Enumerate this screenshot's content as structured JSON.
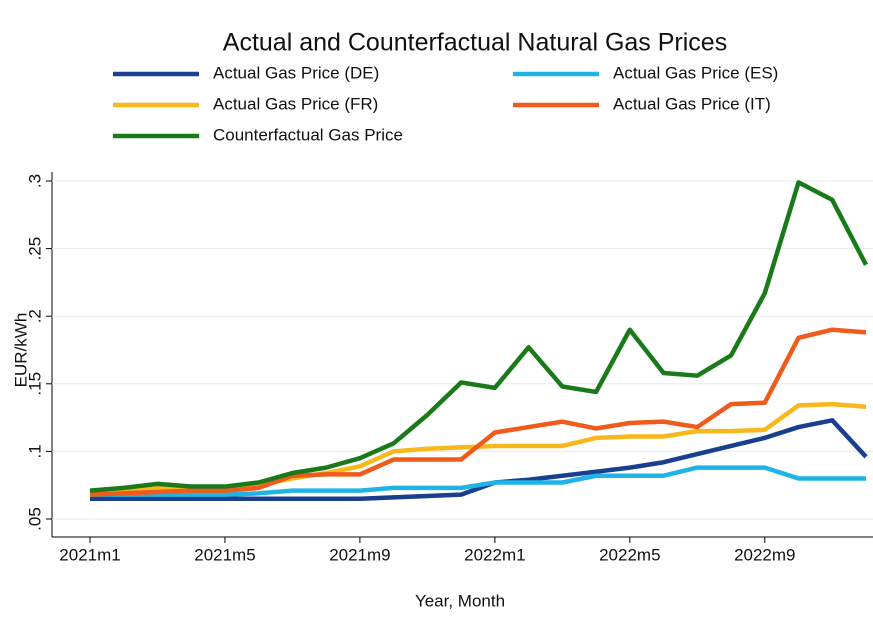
{
  "chart_data": {
    "type": "line",
    "title": "Actual and Counterfactual Natural Gas Prices",
    "x_label": "Year, Month",
    "y_label": "EUR/kWh",
    "categories": [
      "2021m1",
      null,
      null,
      null,
      "2021m5",
      null,
      null,
      null,
      "2021m9",
      null,
      null,
      null,
      "2022m1",
      null,
      null,
      null,
      "2022m5",
      null,
      null,
      null,
      "2022m9",
      null,
      null,
      null
    ],
    "ylim": [
      0.05,
      0.3
    ],
    "yticks": [
      {
        "value": 0.05,
        "label": ".05"
      },
      {
        "value": 0.1,
        "label": ".1"
      },
      {
        "value": 0.15,
        "label": ".15"
      },
      {
        "value": 0.2,
        "label": ".2"
      },
      {
        "value": 0.25,
        "label": ".25"
      },
      {
        "value": 0.3,
        "label": ".3"
      }
    ],
    "grid": true,
    "series": [
      {
        "name": "Actual Gas Price (DE)",
        "color": "#1a3f8f",
        "values": [
          0.065,
          0.065,
          0.065,
          0.065,
          0.065,
          0.065,
          0.065,
          0.065,
          0.065,
          0.066,
          0.067,
          0.068,
          0.077,
          0.079,
          0.082,
          0.085,
          0.088,
          0.092,
          0.098,
          0.104,
          0.11,
          0.118,
          0.123,
          0.096
        ]
      },
      {
        "name": "Actual Gas Price (ES)",
        "color": "#1fb4e8",
        "values": [
          0.068,
          0.068,
          0.068,
          0.068,
          0.068,
          0.069,
          0.071,
          0.071,
          0.071,
          0.073,
          0.073,
          0.073,
          0.077,
          0.077,
          0.077,
          0.082,
          0.082,
          0.082,
          0.088,
          0.088,
          0.088,
          0.08,
          0.08,
          0.08
        ]
      },
      {
        "name": "Actual Gas Price (FR)",
        "color": "#f8b81c",
        "values": [
          0.069,
          0.071,
          0.073,
          0.072,
          0.073,
          0.075,
          0.08,
          0.084,
          0.089,
          0.1,
          0.102,
          0.103,
          0.104,
          0.104,
          0.104,
          0.11,
          0.111,
          0.111,
          0.115,
          0.115,
          0.116,
          0.134,
          0.135,
          0.133
        ]
      },
      {
        "name": "Actual Gas Price (IT)",
        "color": "#f05a1a",
        "values": [
          0.068,
          0.069,
          0.07,
          0.071,
          0.071,
          0.073,
          0.082,
          0.083,
          0.083,
          0.094,
          0.094,
          0.094,
          0.114,
          0.118,
          0.122,
          0.117,
          0.121,
          0.122,
          0.118,
          0.135,
          0.136,
          0.184,
          0.19,
          0.188
        ]
      },
      {
        "name": "Counterfactual Gas Price",
        "color": "#1a7a1a",
        "values": [
          0.071,
          0.073,
          0.076,
          0.074,
          0.074,
          0.077,
          0.084,
          0.088,
          0.095,
          0.106,
          0.127,
          0.151,
          0.147,
          0.177,
          0.148,
          0.144,
          0.19,
          0.158,
          0.156,
          0.171,
          0.217,
          0.299,
          0.286,
          0.238
        ]
      }
    ]
  }
}
